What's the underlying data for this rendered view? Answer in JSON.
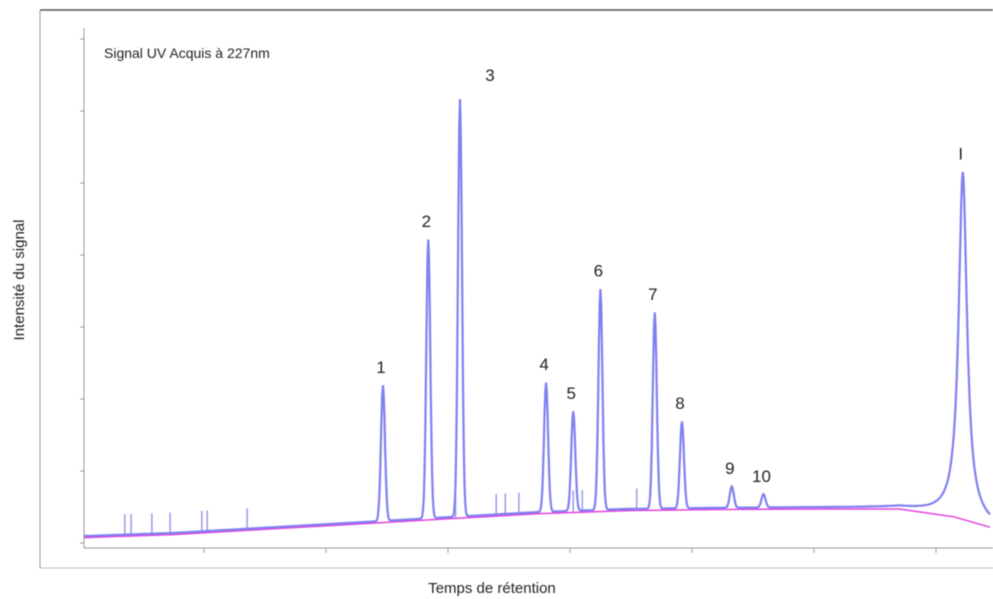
{
  "chart_data": {
    "type": "line",
    "title": "Signal UV Acquis à 227nm",
    "xlabel": "Temps de rétention",
    "ylabel": "Intensité du signal",
    "xlim": [
      0,
      100
    ],
    "ylim": [
      0,
      100
    ],
    "grid": false,
    "series_colors": [
      "#8080f0",
      "#e040e0"
    ],
    "baseline": {
      "x": [
        0,
        10,
        20,
        30,
        40,
        50,
        60,
        70,
        80,
        90,
        96,
        100
      ],
      "y": [
        2.0,
        2.6,
        3.6,
        4.6,
        5.6,
        6.6,
        7.2,
        7.4,
        7.5,
        7.5,
        6.0,
        4.0
      ]
    },
    "peaks": [
      {
        "label": "1",
        "x": 33.0,
        "y": 31.0
      },
      {
        "label": "2",
        "x": 38.0,
        "y": 59.0
      },
      {
        "label": "3",
        "x": 41.5,
        "y": 86.0
      },
      {
        "label": "4",
        "x": 51.0,
        "y": 31.5
      },
      {
        "label": "5",
        "x": 54.0,
        "y": 26.0
      },
      {
        "label": "6",
        "x": 57.0,
        "y": 49.5
      },
      {
        "label": "7",
        "x": 63.0,
        "y": 45.0
      },
      {
        "label": "8",
        "x": 66.0,
        "y": 24.0
      },
      {
        "label": "9",
        "x": 71.5,
        "y": 11.5
      },
      {
        "label": "10",
        "x": 75.0,
        "y": 10.0
      },
      {
        "label": "I",
        "x": 97.0,
        "y": 72.0
      }
    ]
  }
}
